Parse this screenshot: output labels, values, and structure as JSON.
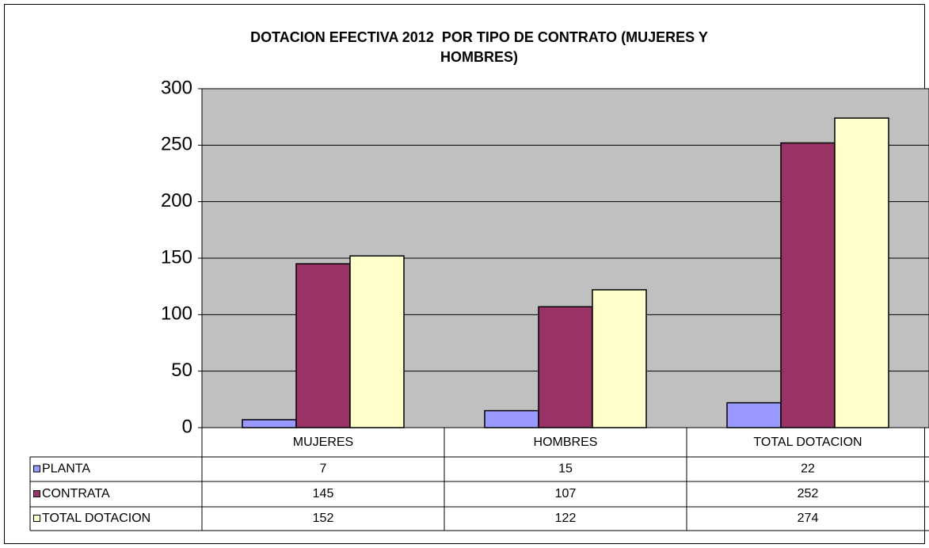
{
  "chart_data": {
    "type": "bar",
    "title": [
      "DOTACION EFECTIVA 2012  POR TIPO DE CONTRATO (MUJERES Y",
      "HOMBRES)"
    ],
    "categories": [
      "MUJERES",
      "HOMBRES",
      "TOTAL DOTACION"
    ],
    "series": [
      {
        "name": "PLANTA",
        "color": "#9999ff",
        "values": [
          7,
          15,
          22
        ]
      },
      {
        "name": "CONTRATA",
        "color": "#993366",
        "values": [
          145,
          107,
          252
        ]
      },
      {
        "name": "TOTAL DOTACION",
        "color": "#ffffcc",
        "values": [
          152,
          122,
          274
        ]
      }
    ],
    "ylim": [
      0,
      300
    ],
    "yticks": [
      0,
      50,
      100,
      150,
      200,
      250,
      300
    ],
    "grid": true,
    "legend": "data-table"
  }
}
